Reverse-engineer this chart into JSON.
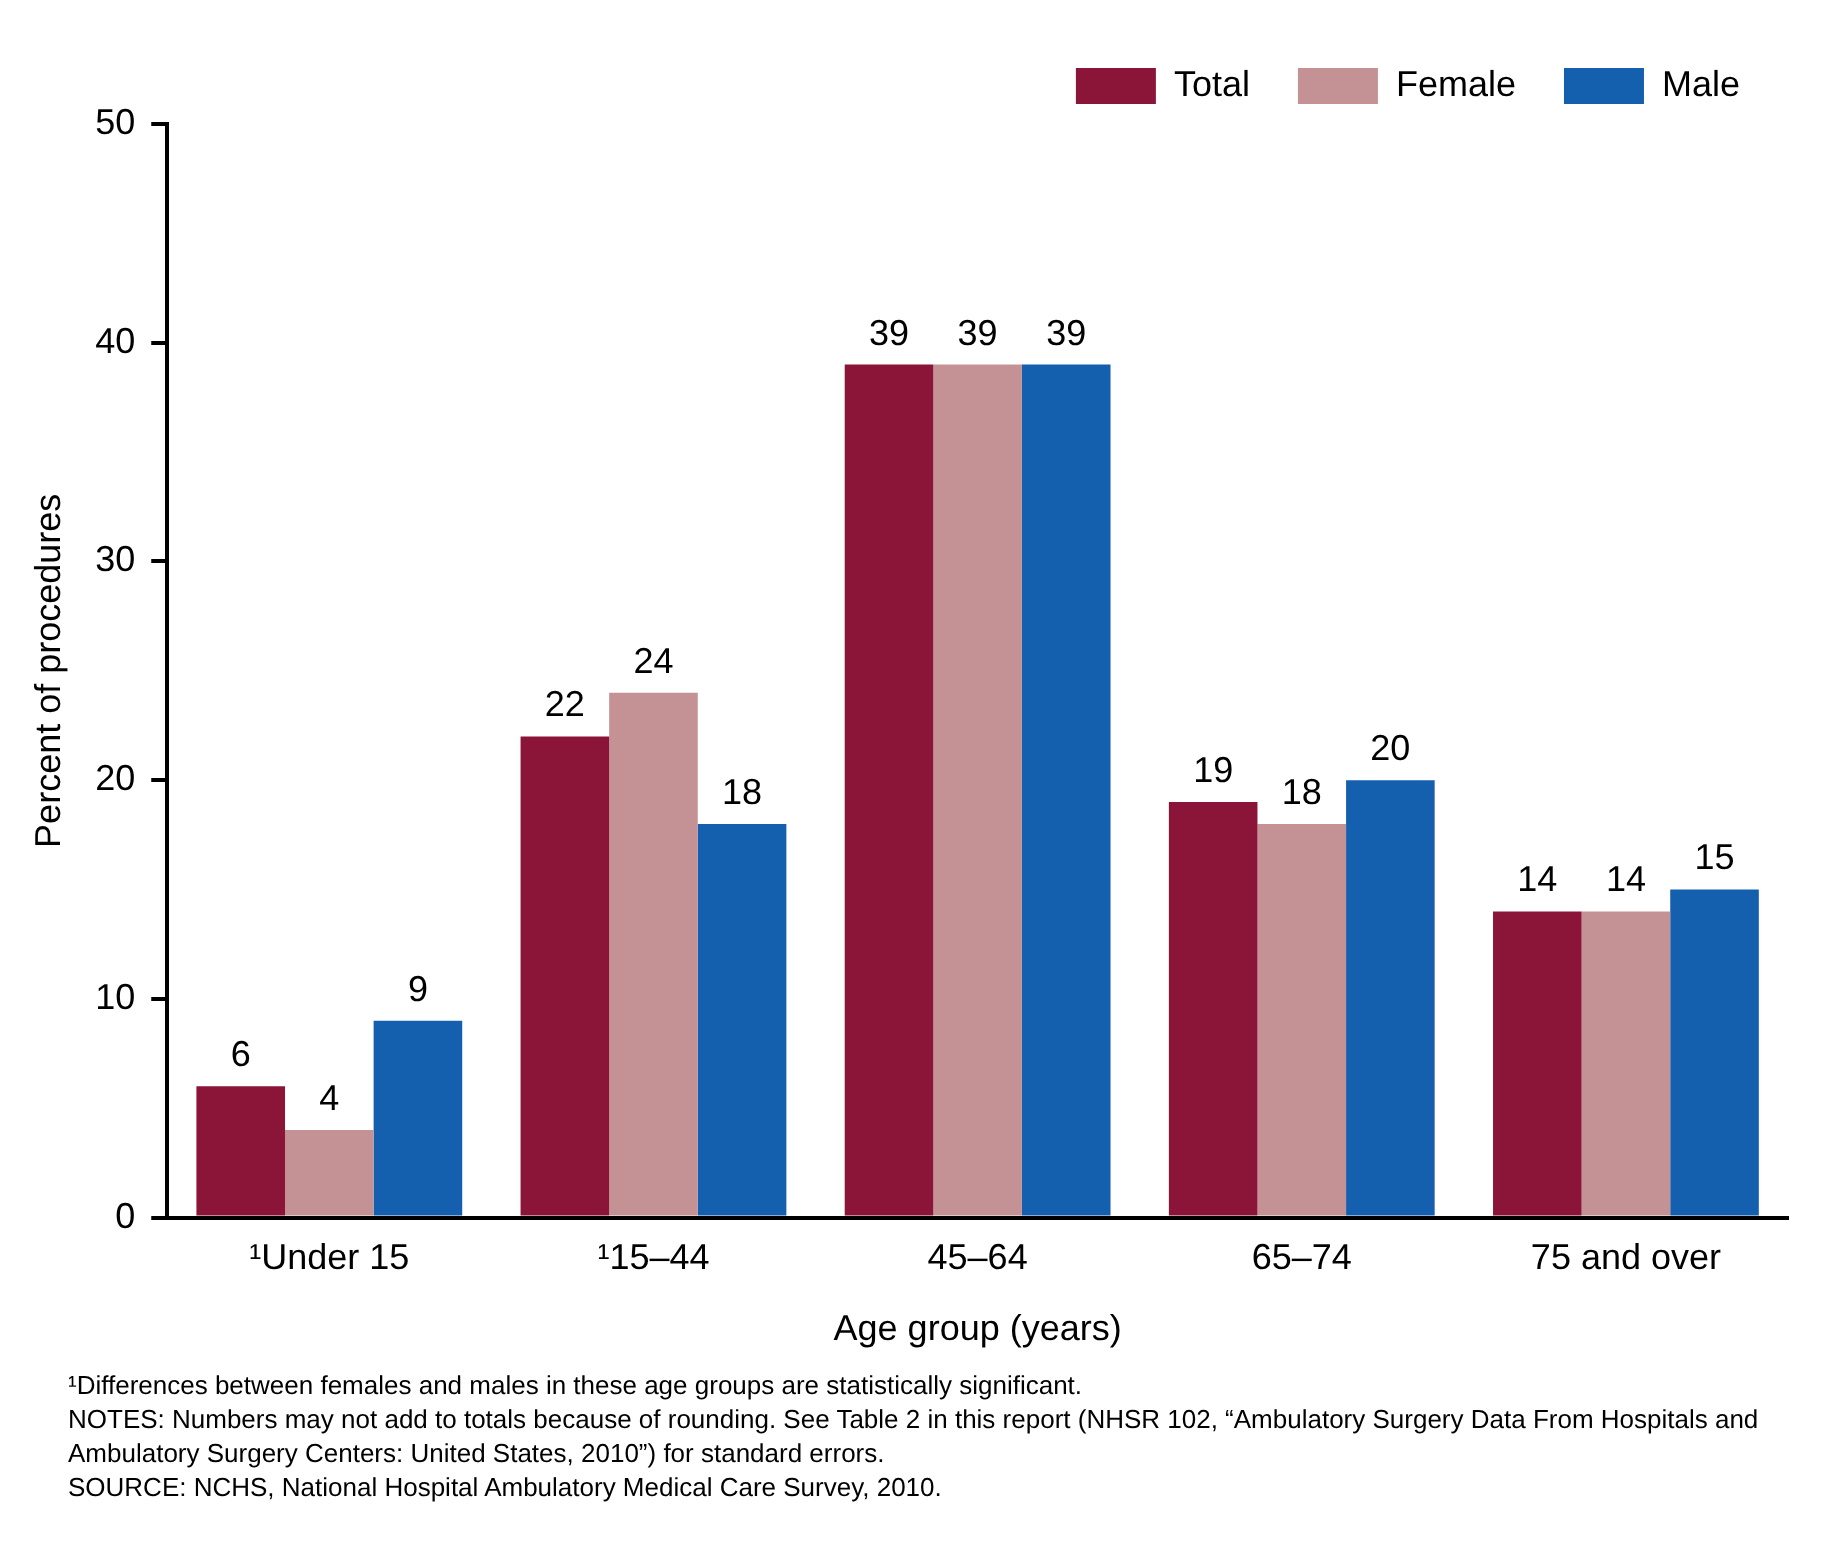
{
  "chart_data": {
    "type": "bar",
    "xlabel": "Age group (years)",
    "ylabel": "Percent of procedures",
    "categories": [
      "¹Under 15",
      "¹15–44",
      "45–64",
      "65–74",
      "75 and over"
    ],
    "series": [
      {
        "name": "Total",
        "color": "#8b1538",
        "values": [
          6,
          22,
          39,
          19,
          14
        ]
      },
      {
        "name": "Female",
        "color": "#c49194",
        "values": [
          4,
          24,
          39,
          18,
          14
        ]
      },
      {
        "name": "Male",
        "color": "#1560ae",
        "values": [
          9,
          18,
          39,
          20,
          15
        ]
      }
    ],
    "ylim": [
      0,
      50
    ],
    "yticks": [
      0,
      10,
      20,
      30,
      40,
      50
    ],
    "grid": false,
    "legend": "top right",
    "data_labels": true,
    "annotations": [
      "¹Differences between females and males in these age groups are statistically significant.",
      "NOTES: Numbers may not add to totals because of rounding. See Table 2 in this report (NHSR 102, “Ambulatory Surgery Data From Hospitals and Ambulatory Surgery Centers: United States, 2010”) for standard errors.",
      "SOURCE: NCHS, National Hospital Ambulatory Medical Care Survey, 2010."
    ]
  }
}
